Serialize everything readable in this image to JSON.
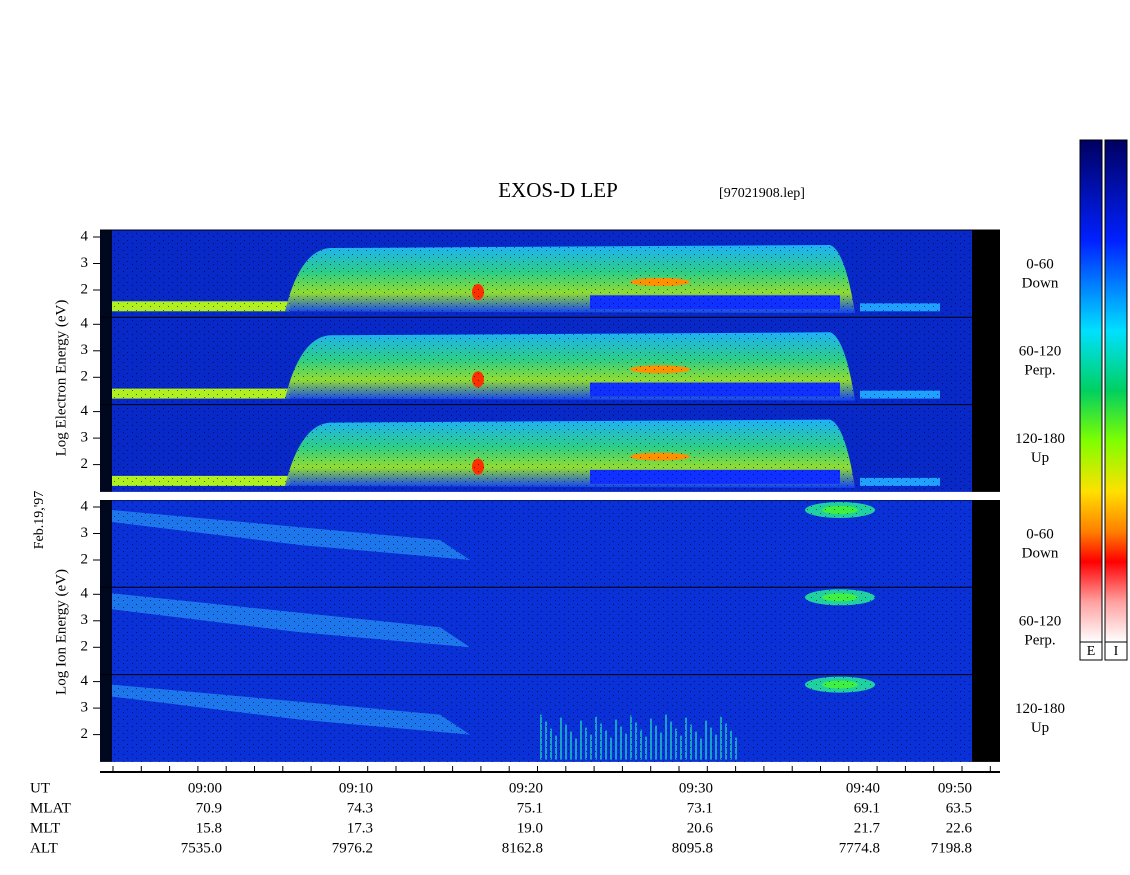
{
  "title": "EXOS-D LEP",
  "file": "[97021908.lep]",
  "date": "Feb.19,'97",
  "electron": {
    "axis_label": "Log Electron Energy (eV)",
    "panels": [
      {
        "angle": "0-60",
        "direction": "Down",
        "ticks": [
          "4",
          "3",
          "2"
        ]
      },
      {
        "angle": "60-120",
        "direction": "Perp.",
        "ticks": [
          "4",
          "3",
          "2"
        ]
      },
      {
        "angle": "120-180",
        "direction": "Up",
        "ticks": [
          "4",
          "3",
          "2"
        ]
      }
    ]
  },
  "ion": {
    "axis_label": "Log Ion Energy (eV)",
    "panels": [
      {
        "angle": "0-60",
        "direction": "Down",
        "ticks": [
          "4",
          "3",
          "2"
        ]
      },
      {
        "angle": "60-120",
        "direction": "Perp.",
        "ticks": [
          "4",
          "3",
          "2"
        ]
      },
      {
        "angle": "120-180",
        "direction": "Up",
        "ticks": [
          "4",
          "3",
          "2"
        ]
      }
    ]
  },
  "time_axis": {
    "rows": [
      {
        "label": "UT",
        "values": [
          "09:00",
          "09:10",
          "09:20",
          "09:30",
          "09:40",
          "09:50"
        ]
      },
      {
        "label": "MLAT",
        "values": [
          "70.9",
          "74.3",
          "75.1",
          "73.1",
          "69.1",
          "63.5"
        ]
      },
      {
        "label": "MLT",
        "values": [
          "15.8",
          "17.3",
          "19.0",
          "20.6",
          "21.7",
          "22.6"
        ]
      },
      {
        "label": "ALT",
        "values": [
          "7535.0",
          "7976.2",
          "8162.8",
          "8095.8",
          "7774.8",
          "7198.8"
        ]
      }
    ]
  },
  "colorbars": [
    "E",
    "I"
  ]
}
